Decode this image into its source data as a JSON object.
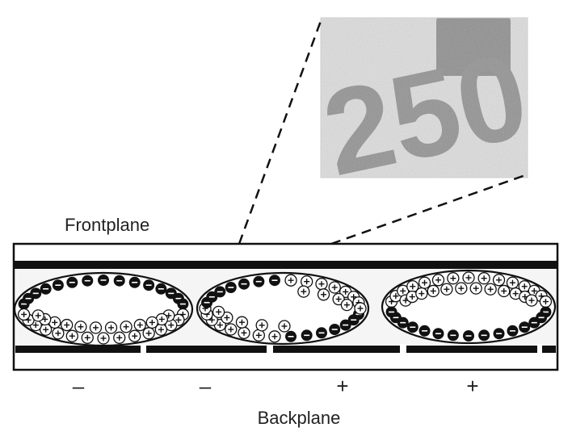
{
  "labels": {
    "frontplane": "Frontplane",
    "backplane": "Backplane"
  },
  "electrode_signs": [
    "–",
    "–",
    "+",
    "+"
  ],
  "particle_glyphs": {
    "positive": "+",
    "negative": "–"
  },
  "inset_text": "250",
  "colors": {
    "black_particle": "#111111",
    "white_particle": "#ffffff",
    "cell_fill": "#f5f5f5",
    "inset_grey": "#9a9a9a",
    "inset_bg": "#dedede"
  }
}
